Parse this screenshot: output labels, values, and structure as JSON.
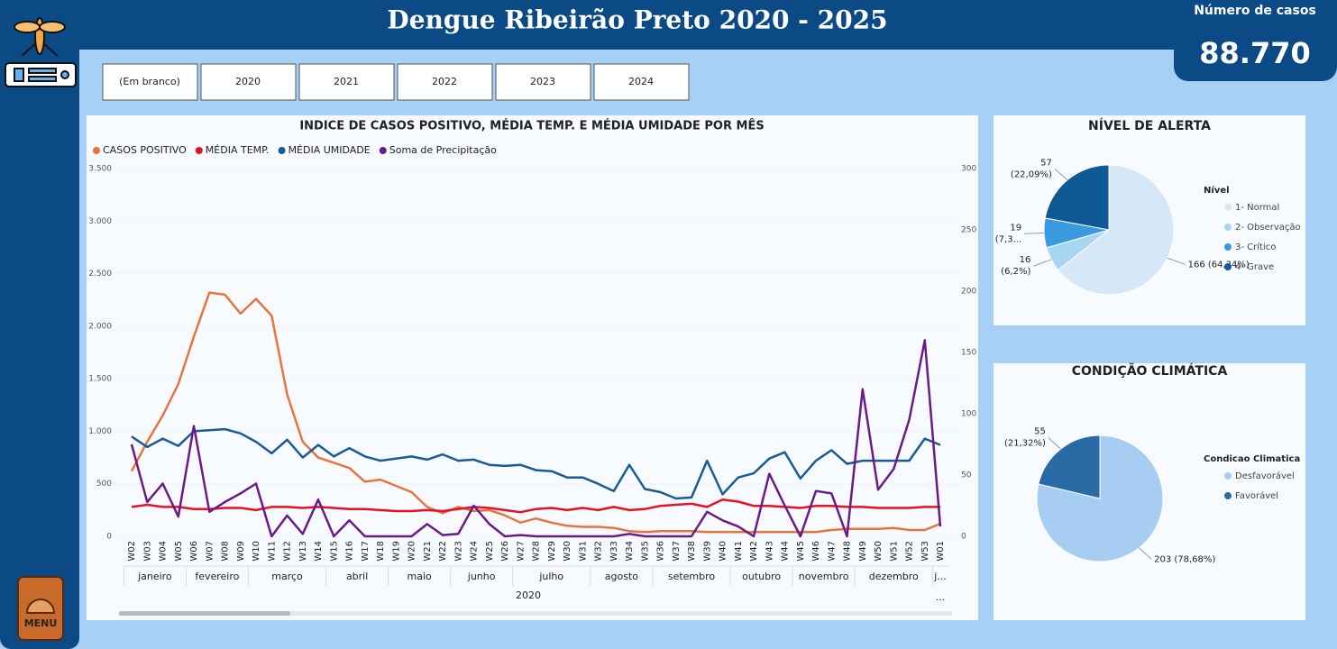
{
  "header": {
    "title": "Dengue Ribeirão Preto 2020 - 2025"
  },
  "kpi": {
    "label": "Número de casos",
    "value": "88.770"
  },
  "filters": [
    "(Em branco)",
    "2020",
    "2021",
    "2022",
    "2023",
    "2024"
  ],
  "menu": {
    "label": "MENU"
  },
  "chart_data": [
    {
      "type": "line",
      "title": "INDICE DE CASOS POSITIVO, MÉDIA TEMP. E MÉDIA UMIDADE POR MÊS",
      "categories": [
        "W02",
        "W03",
        "W04",
        "W05",
        "W06",
        "W07",
        "W08",
        "W09",
        "W10",
        "W11",
        "W12",
        "W13",
        "W14",
        "W15",
        "W16",
        "W17",
        "W18",
        "W19",
        "W20",
        "W21",
        "W22",
        "W23",
        "W24",
        "W25",
        "W26",
        "W27",
        "W28",
        "W29",
        "W30",
        "W31",
        "W32",
        "W33",
        "W34",
        "W35",
        "W36",
        "W37",
        "W38",
        "W39",
        "W40",
        "W41",
        "W42",
        "W43",
        "W44",
        "W45",
        "W46",
        "W47",
        "W48",
        "W49",
        "W50",
        "W51",
        "W52",
        "W53",
        "W01"
      ],
      "month_labels": [
        "janeiro",
        "fevereiro",
        "março",
        "abril",
        "maio",
        "junho",
        "julho",
        "agosto",
        "setembro",
        "outubro",
        "novembro",
        "dezembro",
        "j..."
      ],
      "year_labels": [
        "2020",
        "..."
      ],
      "series": [
        {
          "name": "CASOS POSITIVO",
          "color": "#e8743b",
          "values": [
            620,
            900,
            1150,
            1450,
            1900,
            2320,
            2300,
            2120,
            2260,
            2100,
            1350,
            900,
            750,
            700,
            650,
            520,
            540,
            480,
            420,
            280,
            220,
            280,
            240,
            250,
            200,
            130,
            170,
            130,
            100,
            90,
            90,
            80,
            50,
            40,
            50,
            50,
            50,
            40,
            40,
            40,
            40,
            40,
            40,
            40,
            40,
            60,
            70,
            70,
            70,
            80,
            60,
            60,
            120
          ]
        },
        {
          "name": "MÉDIA TEMP.",
          "color": "#e81123",
          "values": [
            280,
            300,
            280,
            280,
            260,
            260,
            270,
            270,
            250,
            280,
            280,
            270,
            280,
            270,
            260,
            260,
            250,
            240,
            240,
            250,
            240,
            260,
            280,
            270,
            250,
            230,
            260,
            270,
            250,
            270,
            250,
            280,
            250,
            260,
            290,
            300,
            310,
            280,
            350,
            330,
            290,
            290,
            280,
            270,
            290,
            290,
            280,
            280,
            270,
            270,
            270,
            280,
            280
          ]
        },
        {
          "name": "MÉDIA UMIDADE",
          "color": "#1a5a96",
          "values": [
            950,
            850,
            930,
            860,
            1000,
            1010,
            1020,
            980,
            900,
            790,
            920,
            750,
            870,
            760,
            840,
            760,
            720,
            740,
            760,
            730,
            780,
            720,
            730,
            680,
            670,
            680,
            630,
            620,
            560,
            560,
            500,
            430,
            680,
            450,
            420,
            360,
            370,
            720,
            400,
            560,
            600,
            740,
            800,
            550,
            720,
            820,
            690,
            720,
            720,
            720,
            720,
            930,
            870
          ]
        },
        {
          "name": "Soma de Precipitação",
          "color": "#6b1a8a",
          "axis": "y2",
          "values": [
            75,
            28,
            43,
            16,
            90,
            20,
            28,
            35,
            43,
            0,
            17,
            2,
            30,
            0,
            13,
            0,
            0,
            0,
            0,
            10,
            1,
            2,
            25,
            10,
            0,
            1,
            0,
            0,
            0,
            0,
            0,
            0,
            2,
            0,
            0,
            0,
            0,
            20,
            13,
            8,
            0,
            51,
            25,
            0,
            37,
            35,
            0,
            120,
            38,
            55,
            95,
            160,
            8
          ]
        }
      ],
      "ylim": [
        0,
        3500
      ],
      "yticks": [
        0,
        500,
        {
          "value": 1000,
          "label": "1.000"
        },
        {
          "value": 1500,
          "label": "1.500"
        },
        {
          "value": 2000,
          "label": "2.000"
        },
        {
          "value": 2500,
          "label": "2.500"
        },
        {
          "value": 3000,
          "label": "3.000"
        },
        {
          "value": 3500,
          "label": "3.500"
        }
      ],
      "y2lim": [
        0,
        300
      ],
      "y2ticks": [
        0,
        50,
        100,
        150,
        200,
        250,
        300
      ],
      "grid": true,
      "legend": "top-left"
    },
    {
      "type": "pie",
      "title": "NÍVEL DE ALERTA",
      "legend_title": "Nível",
      "categories": [
        "1- Normal",
        "2- Observação",
        "3- Crítico",
        "4- Grave"
      ],
      "values": [
        166,
        16,
        19,
        57
      ],
      "value_labels": [
        "166 (64,34%)",
        "16 (6,2%)",
        "19 (7,3...",
        "57 (22,09%)"
      ],
      "colors": [
        "#d6e8f8",
        "#a7d6f2",
        "#3a9ae0",
        "#0f5a96"
      ],
      "legend": "right"
    },
    {
      "type": "pie",
      "title": "CONDIÇÃO CLIMÁTICA",
      "legend_title": "Condicao Climatica",
      "categories": [
        "Desfavorável",
        "Favorável"
      ],
      "values": [
        203,
        55
      ],
      "value_labels": [
        "203 (78,68%)",
        "55 (21,32%)"
      ],
      "colors": [
        "#a8cdf2",
        "#2a6aa5"
      ],
      "legend": "right"
    }
  ]
}
